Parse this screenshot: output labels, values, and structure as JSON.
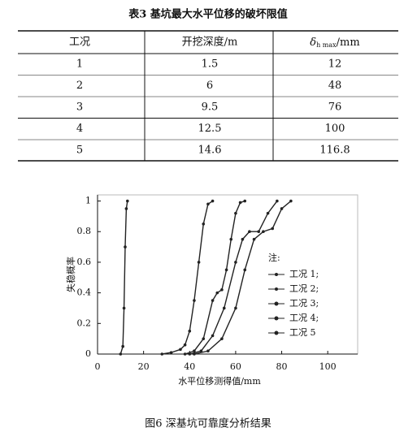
{
  "table": {
    "title": "表3  基坑最大水平位移的破坏限值",
    "header": [
      "工况",
      "开挖深度/m",
      {
        "symbol": "δ",
        "subscript": "h max",
        "unit": "/mm"
      }
    ],
    "rows": [
      [
        1,
        1.5,
        12
      ],
      [
        2,
        6,
        48
      ],
      [
        3,
        9.5,
        76
      ],
      [
        4,
        12.5,
        100
      ],
      [
        5,
        14.6,
        116.8
      ]
    ]
  },
  "chart_data": {
    "type": "line",
    "title": "图6  深基坑可靠度分析结果",
    "xlabel": "水平位移测得值/mm",
    "ylabel": "失稳概率",
    "xlim": [
      0,
      113
    ],
    "ylim": [
      0,
      1.04
    ],
    "xticks": [
      0,
      20,
      40,
      60,
      80,
      100
    ],
    "yticks": [
      0,
      0.2,
      0.4,
      0.6,
      0.8,
      1
    ],
    "legend_title": "注:",
    "legend": "right",
    "series": [
      {
        "name": "工况 1;",
        "color": "#222",
        "x": [
          10,
          11,
          11.5,
          12,
          12.5,
          13
        ],
        "values": [
          0,
          0.05,
          0.3,
          0.7,
          0.95,
          1
        ]
      },
      {
        "name": "工况 2;",
        "color": "#222",
        "x": [
          28,
          32,
          36,
          38,
          40,
          42,
          44,
          46,
          48,
          50
        ],
        "values": [
          0,
          0.01,
          0.03,
          0.06,
          0.15,
          0.35,
          0.6,
          0.85,
          0.98,
          1
        ]
      },
      {
        "name": "工况 3;",
        "color": "#222",
        "x": [
          38,
          42,
          46,
          50,
          52,
          54,
          56,
          58,
          60,
          62,
          64
        ],
        "values": [
          0,
          0.02,
          0.1,
          0.35,
          0.4,
          0.42,
          0.55,
          0.75,
          0.92,
          0.99,
          1
        ]
      },
      {
        "name": "工况 4;",
        "color": "#222",
        "x": [
          40,
          45,
          50,
          55,
          60,
          63,
          66,
          70,
          74,
          78
        ],
        "values": [
          0,
          0.02,
          0.12,
          0.3,
          0.6,
          0.75,
          0.8,
          0.8,
          0.92,
          1
        ]
      },
      {
        "name": "工况 5",
        "color": "#222",
        "x": [
          42,
          48,
          54,
          60,
          64,
          68,
          72,
          76,
          80,
          84
        ],
        "values": [
          0,
          0.02,
          0.1,
          0.3,
          0.55,
          0.75,
          0.8,
          0.82,
          0.95,
          1
        ]
      }
    ]
  }
}
